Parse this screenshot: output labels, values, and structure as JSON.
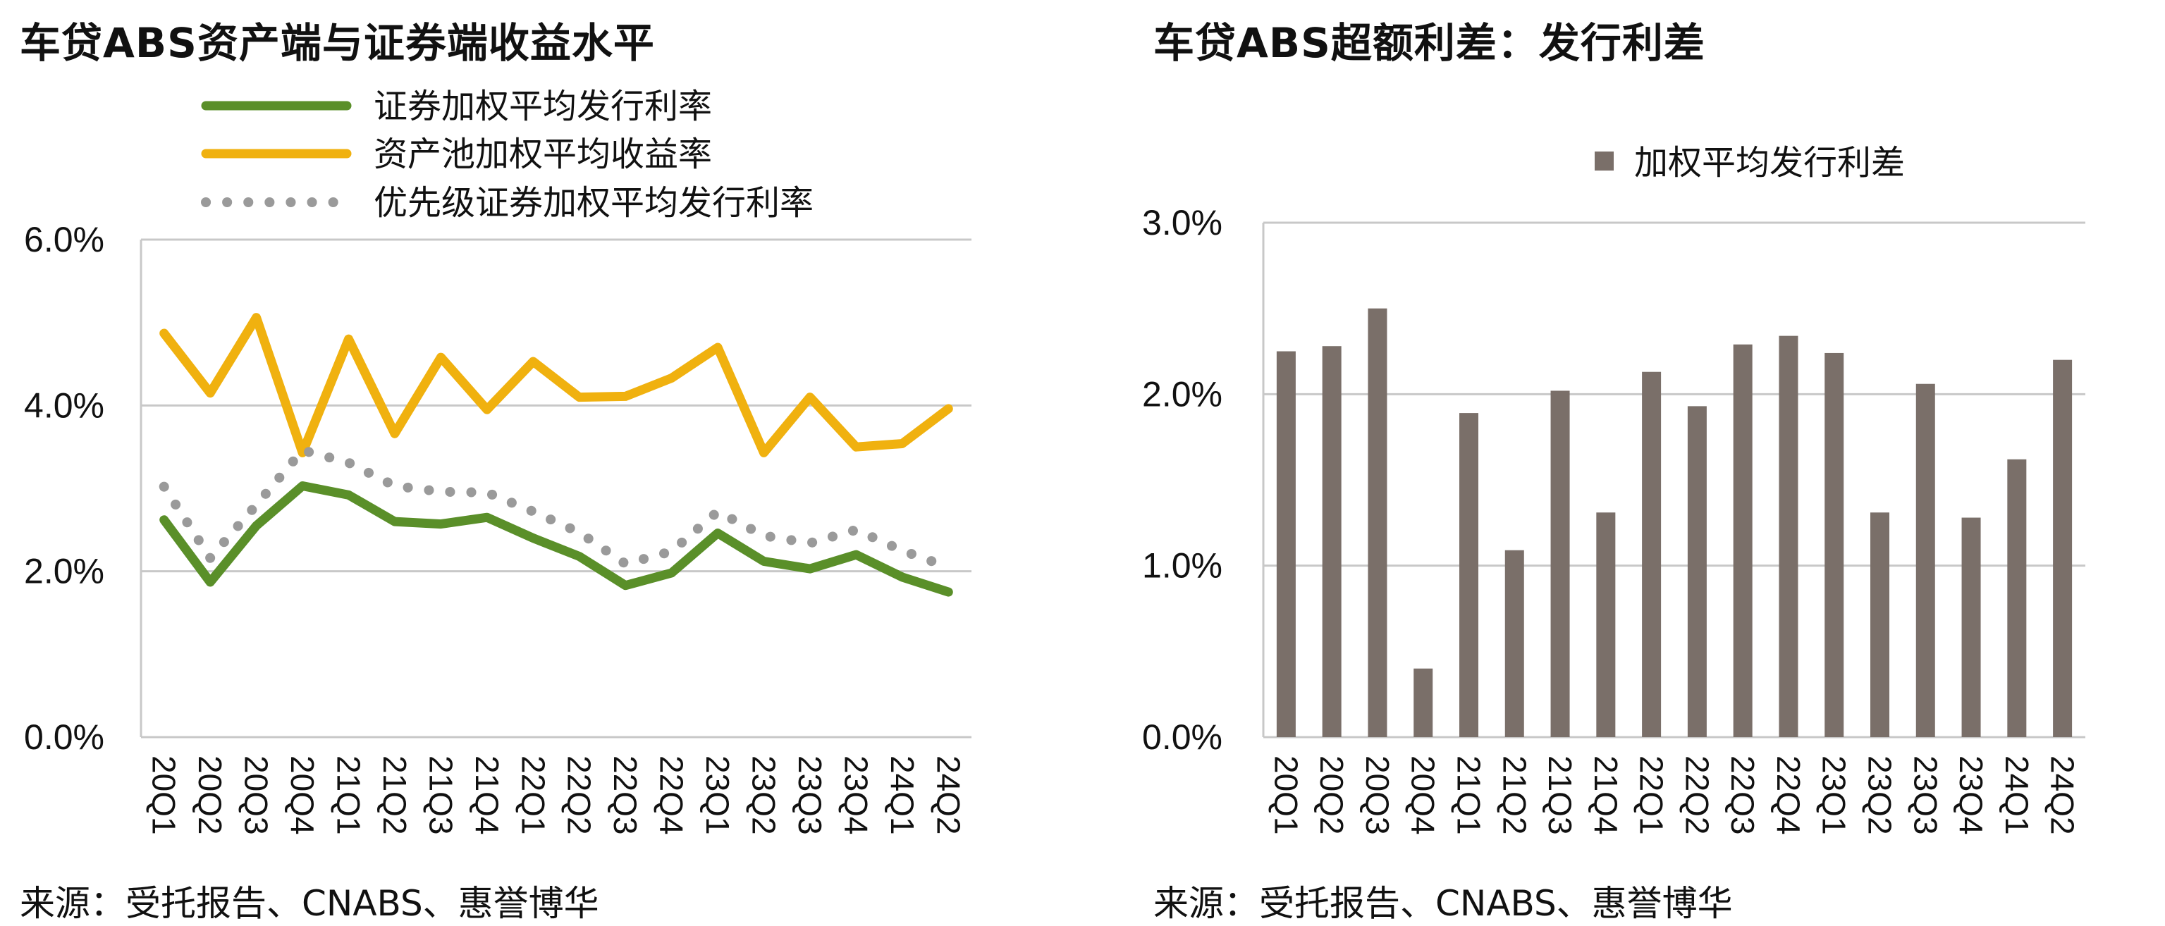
{
  "left_title": "车贷ABS资产端与证券端收益水平",
  "right_title": "车贷ABS超额利差：发行利差",
  "left_source": "来源：受托报告、CNABS、惠誉博华",
  "right_source": "来源：受托报告、CNABS、惠誉博华",
  "chart_data": [
    {
      "type": "line",
      "title": "车贷ABS资产端与证券端收益水平",
      "categories": [
        "20Q1",
        "20Q2",
        "20Q3",
        "20Q4",
        "21Q1",
        "21Q2",
        "21Q3",
        "21Q4",
        "22Q1",
        "22Q2",
        "22Q3",
        "22Q4",
        "23Q1",
        "23Q2",
        "23Q3",
        "23Q4",
        "24Q1",
        "24Q2"
      ],
      "y_tick_labels": [
        "0.0%",
        "2.0%",
        "4.0%",
        "6.0%"
      ],
      "ylim": [
        0,
        6
      ],
      "grid": true,
      "legend_position": "top",
      "series": [
        {
          "name": "证券加权平均发行利率",
          "color": "#5a8f29",
          "style": "solid",
          "values": [
            2.62,
            1.87,
            2.55,
            3.03,
            2.92,
            2.6,
            2.57,
            2.65,
            2.4,
            2.18,
            1.83,
            1.98,
            2.46,
            2.12,
            2.03,
            2.2,
            1.93,
            1.75
          ]
        },
        {
          "name": "资产池加权平均收益率",
          "color": "#f0b10f",
          "style": "solid",
          "values": [
            4.87,
            4.15,
            5.06,
            3.43,
            4.8,
            3.66,
            4.58,
            3.95,
            4.53,
            4.1,
            4.11,
            4.33,
            4.7,
            3.43,
            4.1,
            3.5,
            3.54,
            3.96
          ]
        },
        {
          "name": "优先级证券加权平均发行利率",
          "color": "#9a9a9a",
          "style": "dotted",
          "values": [
            3.02,
            2.16,
            2.8,
            3.46,
            3.31,
            3.03,
            2.96,
            2.95,
            2.72,
            2.47,
            2.09,
            2.24,
            2.72,
            2.43,
            2.34,
            2.5,
            2.25,
            2.05
          ]
        }
      ]
    },
    {
      "type": "bar",
      "title": "车贷ABS超额利差：发行利差",
      "categories": [
        "20Q1",
        "20Q2",
        "20Q3",
        "20Q4",
        "21Q1",
        "21Q2",
        "21Q3",
        "21Q4",
        "22Q1",
        "22Q2",
        "22Q3",
        "22Q4",
        "23Q1",
        "23Q2",
        "23Q3",
        "23Q4",
        "24Q1",
        "24Q2"
      ],
      "y_tick_labels": [
        "0.0%",
        "1.0%",
        "2.0%",
        "3.0%"
      ],
      "ylim": [
        0,
        3
      ],
      "grid": true,
      "legend_position": "top",
      "series": [
        {
          "name": "加权平均发行利差",
          "color": "#7a6f69",
          "values": [
            2.25,
            2.28,
            2.5,
            0.4,
            1.89,
            1.09,
            2.02,
            1.31,
            2.13,
            1.93,
            2.29,
            2.34,
            2.24,
            1.31,
            2.06,
            1.28,
            1.62,
            2.2
          ]
        }
      ]
    }
  ]
}
